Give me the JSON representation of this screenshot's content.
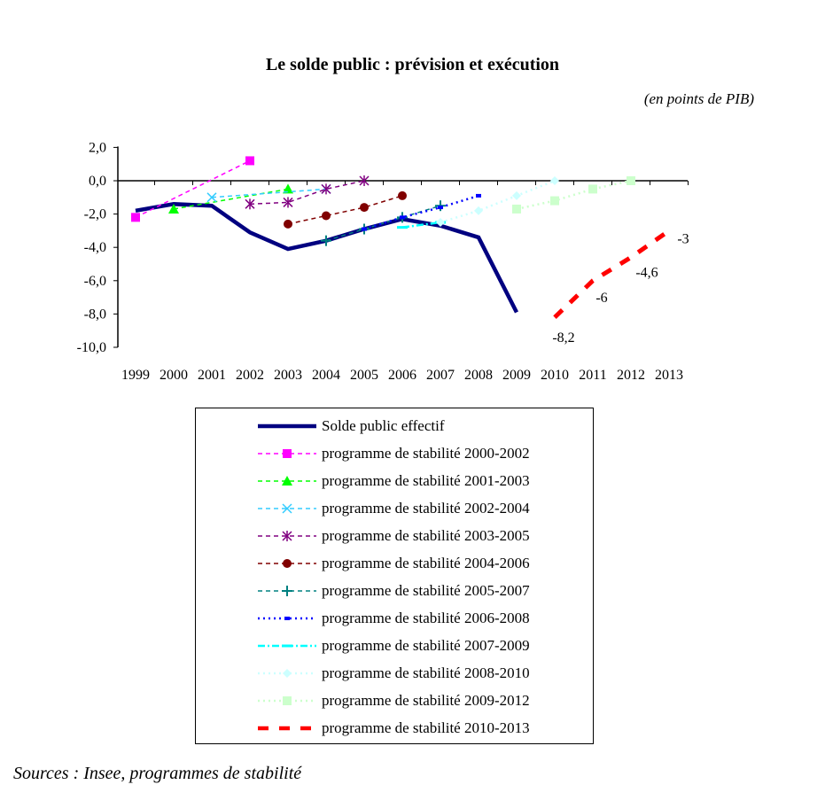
{
  "chart_data": {
    "type": "line",
    "title": "Le solde public : prévision et exécution",
    "subtitle": "(en points de PIB)",
    "xlabel": "",
    "ylabel": "",
    "ylim": [
      -10,
      2
    ],
    "yticks": [
      "2,0",
      "0,0",
      "-2,0",
      "-4,0",
      "-6,0",
      "-8,0",
      "-10,0"
    ],
    "ytick_values": [
      2,
      0,
      -2,
      -4,
      -6,
      -8,
      -10
    ],
    "x": [
      1999,
      2000,
      2001,
      2002,
      2003,
      2004,
      2005,
      2006,
      2007,
      2008,
      2009,
      2010,
      2011,
      2012,
      2013
    ],
    "legend_position": "bottom",
    "series": [
      {
        "name": "Solde public effectif",
        "color": "#000080",
        "style": "solid",
        "marker": "none",
        "points": [
          [
            1999,
            -1.8
          ],
          [
            2000,
            -1.4
          ],
          [
            2001,
            -1.5
          ],
          [
            2002,
            -3.1
          ],
          [
            2003,
            -4.1
          ],
          [
            2004,
            -3.6
          ],
          [
            2005,
            -2.9
          ],
          [
            2006,
            -2.3
          ],
          [
            2007,
            -2.7
          ],
          [
            2008,
            -3.4
          ],
          [
            2009,
            -7.9
          ]
        ]
      },
      {
        "name": "programme de stabilité 2000-2002",
        "color": "#ff00ff",
        "style": "dash",
        "marker": "square",
        "points": [
          [
            1999,
            -2.2
          ],
          [
            2002,
            1.2
          ]
        ]
      },
      {
        "name": "programme de stabilité 2001-2003",
        "color": "#00ff00",
        "style": "dash",
        "marker": "triangle",
        "points": [
          [
            2000,
            -1.7
          ],
          [
            2003,
            -0.5
          ]
        ]
      },
      {
        "name": "programme de stabilité 2002-2004",
        "color": "#33ccff",
        "style": "dash",
        "marker": "x",
        "points": [
          [
            2001,
            -1.0
          ],
          [
            2004,
            -0.5
          ]
        ]
      },
      {
        "name": "programme de stabilité 2003-2005",
        "color": "#800080",
        "style": "dash",
        "marker": "star",
        "points": [
          [
            2002,
            -1.4
          ],
          [
            2003,
            -1.3
          ],
          [
            2004,
            -0.5
          ],
          [
            2005,
            0.0
          ]
        ]
      },
      {
        "name": "programme de stabilité 2004-2006",
        "color": "#800000",
        "style": "dash",
        "marker": "circle",
        "points": [
          [
            2003,
            -2.6
          ],
          [
            2004,
            -2.1
          ],
          [
            2005,
            -1.6
          ],
          [
            2006,
            -0.9
          ]
        ]
      },
      {
        "name": "programme de stabilité 2005-2007",
        "color": "#008080",
        "style": "dash",
        "marker": "plus",
        "points": [
          [
            2004,
            -3.6
          ],
          [
            2005,
            -2.9
          ],
          [
            2006,
            -2.2
          ],
          [
            2007,
            -1.5
          ]
        ]
      },
      {
        "name": "programme de stabilité 2006-2008",
        "color": "#0000ff",
        "style": "dot",
        "marker": "smallsquare",
        "points": [
          [
            2005,
            -2.9
          ],
          [
            2006,
            -2.2
          ],
          [
            2007,
            -1.6
          ],
          [
            2008,
            -0.9
          ]
        ]
      },
      {
        "name": "programme de stabilité 2007-2009",
        "color": "#00ffff",
        "style": "dashdot",
        "marker": "dash",
        "points": [
          [
            2006,
            -2.8
          ],
          [
            2007,
            -2.5
          ]
        ]
      },
      {
        "name": "programme de stabilité 2008-2010",
        "color": "#ccffff",
        "style": "dot",
        "marker": "diamond",
        "points": [
          [
            2007,
            -2.5
          ],
          [
            2008,
            -1.8
          ],
          [
            2009,
            -0.9
          ],
          [
            2010,
            0.0
          ]
        ]
      },
      {
        "name": "programme de stabilité 2009-2012",
        "color": "#ccffcc",
        "style": "dot",
        "marker": "square",
        "points": [
          [
            2009,
            -1.7
          ],
          [
            2010,
            -1.2
          ],
          [
            2011,
            -0.5
          ],
          [
            2012,
            0.0
          ]
        ]
      },
      {
        "name": "programme de stabilité 2010-2013",
        "color": "#ff0000",
        "style": "bigdash",
        "marker": "none",
        "points": [
          [
            2010,
            -8.2
          ],
          [
            2011,
            -6
          ],
          [
            2012,
            -4.6
          ],
          [
            2013,
            -3
          ]
        ]
      }
    ],
    "annotations": [
      {
        "x": 2010,
        "y": -8.2,
        "text": "-8,2"
      },
      {
        "x": 2011,
        "y": -6,
        "text": "-6"
      },
      {
        "x": 2012,
        "y": -4.6,
        "text": "-4,6"
      },
      {
        "x": 2013,
        "y": -3,
        "text": "-3"
      }
    ]
  },
  "source": "Sources : Insee, programmes de stabilité"
}
